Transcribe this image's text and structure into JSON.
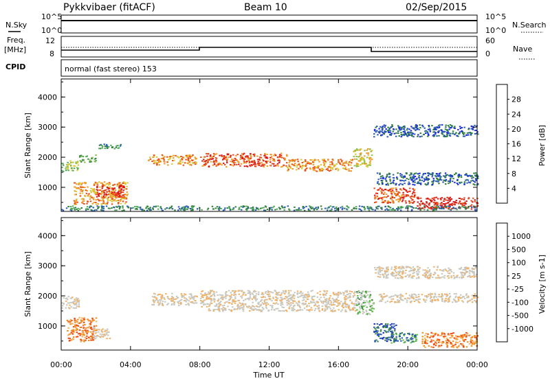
{
  "header": {
    "station": "Pykkvibaer (fitACF)",
    "beam": "Beam 10",
    "date": "02/Sep/2015"
  },
  "noise_panel": {
    "left_label": "N.Sky",
    "left_ticks": [
      "10^5",
      "10^0"
    ],
    "right_ticks": [
      "10^5",
      "10^0"
    ],
    "right_label": "N.Search"
  },
  "freq_panel": {
    "left_label_1": "Freq.",
    "left_label_2": "[MHz]",
    "left_ticks": [
      "12",
      "8"
    ],
    "right_ticks": [
      "60",
      "0"
    ],
    "right_label": "Nave"
  },
  "cpid": {
    "label": "CPID",
    "value": "normal (fast stereo) 153"
  },
  "colors": {
    "power_scale": [
      "#1a2bdc",
      "#2a5cb8",
      "#2e7f3c",
      "#52a85a",
      "#8cc04a",
      "#d8c832",
      "#f09a28",
      "#e8501e",
      "#d81818"
    ],
    "velocity_scale": [
      "#e81818",
      "#f04a10",
      "#f28c18",
      "#f4b060",
      "#c8c8c0",
      "#c8c8c0",
      "#60c040",
      "#3d8a4c",
      "#2a5ab0",
      "#1c30c8"
    ]
  },
  "chart_data": [
    {
      "type": "heatmap",
      "name": "power",
      "ylabel": "Slant Range [km]",
      "yticks": [
        "4000",
        "3000",
        "2000",
        "1000"
      ],
      "ylim": [
        200,
        4600
      ],
      "colorbar_label": "Power [dB]",
      "colorbar_ticks": [
        "28",
        "24",
        "20",
        "16",
        "12",
        "8",
        "4"
      ],
      "colorbar_range": [
        0,
        30
      ],
      "bands": [
        {
          "t": [
            0,
            1.0
          ],
          "r": [
            1550,
            1900
          ],
          "level": 4
        },
        {
          "t": [
            1.0,
            2.0
          ],
          "r": [
            1850,
            2100
          ],
          "level": 3
        },
        {
          "t": [
            2.0,
            3.4
          ],
          "r": [
            2300,
            2450
          ],
          "level": 2
        },
        {
          "t": [
            0.7,
            3.8
          ],
          "r": [
            450,
            1200
          ],
          "level": 6
        },
        {
          "t": [
            2.0,
            3.6
          ],
          "r": [
            700,
            1100
          ],
          "level": 8
        },
        {
          "t": [
            5.0,
            7.8
          ],
          "r": [
            1750,
            2100
          ],
          "level": 6
        },
        {
          "t": [
            8.0,
            13.0
          ],
          "r": [
            1700,
            2150
          ],
          "level": 7
        },
        {
          "t": [
            13.0,
            16.8
          ],
          "r": [
            1550,
            1950
          ],
          "level": 6
        },
        {
          "t": [
            16.8,
            17.9
          ],
          "r": [
            1700,
            2300
          ],
          "level": 5
        },
        {
          "t": [
            18.0,
            20.5
          ],
          "r": [
            500,
            1000
          ],
          "level": 7
        },
        {
          "t": [
            18.2,
            24.0
          ],
          "r": [
            1100,
            1500
          ],
          "level": 1
        },
        {
          "t": [
            20.5,
            24.0
          ],
          "r": [
            300,
            700
          ],
          "level": 8
        },
        {
          "t": [
            18.0,
            24.0
          ],
          "r": [
            2700,
            3100
          ],
          "level": 1
        },
        {
          "t": [
            0,
            24.0
          ],
          "r": [
            250,
            400
          ],
          "level": 2
        }
      ]
    },
    {
      "type": "heatmap",
      "name": "velocity",
      "ylabel": "Slant Range [km]",
      "yticks": [
        "4000",
        "3000",
        "2000",
        "1000"
      ],
      "ylim": [
        200,
        4600
      ],
      "colorbar_label": "Velocity [m s-1]",
      "colorbar_ticks": [
        "1000",
        "500",
        "100",
        "25",
        "-25",
        "-100",
        "-500",
        "-1000"
      ],
      "bands": [
        {
          "t": [
            0,
            1.0
          ],
          "r": [
            1600,
            2000
          ],
          "level": 4
        },
        {
          "t": [
            0.3,
            2.0
          ],
          "r": [
            500,
            1300
          ],
          "level": 2
        },
        {
          "t": [
            1.8,
            2.8
          ],
          "r": [
            600,
            1000
          ],
          "level": 4
        },
        {
          "t": [
            5.2,
            7.8
          ],
          "r": [
            1700,
            2100
          ],
          "level": 4
        },
        {
          "t": [
            8.0,
            17.0
          ],
          "r": [
            1500,
            2200
          ],
          "level": 4
        },
        {
          "t": [
            17.0,
            18.0
          ],
          "r": [
            1400,
            2200
          ],
          "level": 6
        },
        {
          "t": [
            18.0,
            19.3
          ],
          "r": [
            500,
            1100
          ],
          "level": 8
        },
        {
          "t": [
            19.0,
            20.5
          ],
          "r": [
            450,
            800
          ],
          "level": 7
        },
        {
          "t": [
            20.8,
            24.0
          ],
          "r": [
            300,
            800
          ],
          "level": 2
        },
        {
          "t": [
            18.2,
            24.0
          ],
          "r": [
            1800,
            2100
          ],
          "level": 4
        },
        {
          "t": [
            18.0,
            24.0
          ],
          "r": [
            2600,
            3000
          ],
          "level": 4
        }
      ]
    }
  ],
  "xaxis": {
    "ticks": [
      "00:00",
      "04:00",
      "08:00",
      "12:00",
      "16:00",
      "20:00",
      "00:00"
    ],
    "label": "Time UT",
    "range_hours": [
      0,
      24
    ]
  }
}
